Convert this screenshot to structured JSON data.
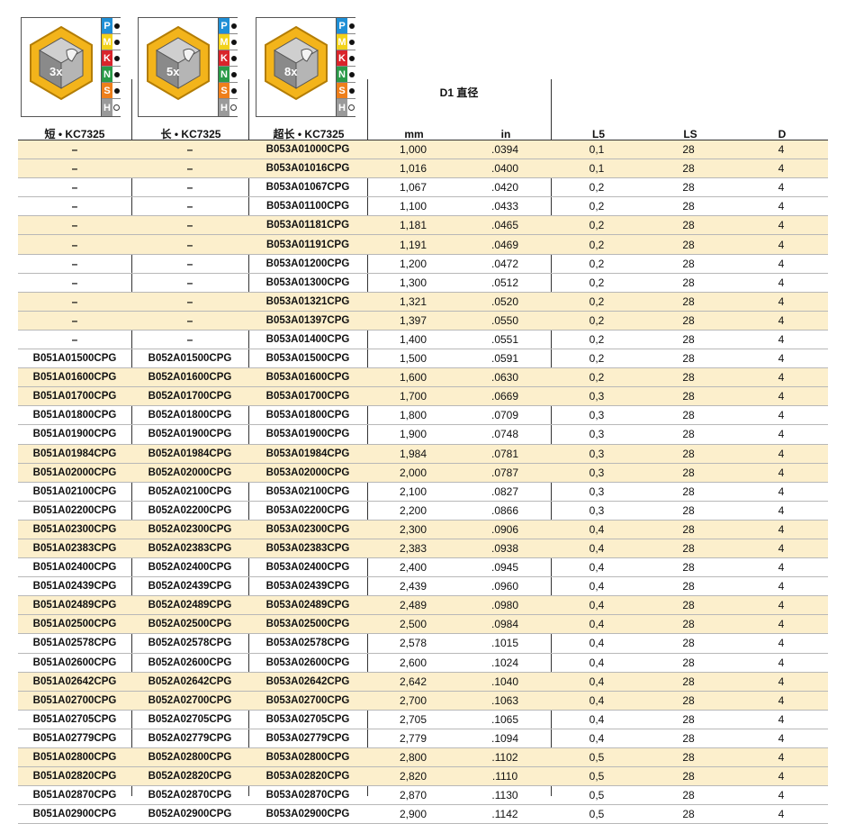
{
  "header": {
    "icons": [
      {
        "multiplier": "3x",
        "name": "3x-length-drill-icon"
      },
      {
        "multiplier": "5x",
        "name": "5x-length-drill-icon"
      },
      {
        "multiplier": "8x",
        "name": "8x-length-drill-icon"
      }
    ],
    "materials": [
      {
        "letter": "P",
        "color": "#1f8fd6",
        "suitable": "full"
      },
      {
        "letter": "M",
        "color": "#f2d21a",
        "suitable": "full"
      },
      {
        "letter": "K",
        "color": "#d9242b",
        "suitable": "full"
      },
      {
        "letter": "N",
        "color": "#2a9a48",
        "suitable": "full"
      },
      {
        "letter": "S",
        "color": "#ee7f1b",
        "suitable": "full"
      },
      {
        "letter": "H",
        "color": "#9a9a9a",
        "suitable": "empty"
      }
    ],
    "group_label": "D1 直径",
    "columns": {
      "short": "短 • KC7325",
      "long": "长 • KC7325",
      "extra_long": "超长 • KC7325",
      "mm": "mm",
      "in": "in",
      "l5": "L5",
      "ls": "LS",
      "d": "D"
    }
  },
  "rows": [
    [
      "–",
      "–",
      "B053A01000CPG",
      "1,000",
      ".0394",
      "0,1",
      "28",
      "4"
    ],
    [
      "–",
      "–",
      "B053A01016CPG",
      "1,016",
      ".0400",
      "0,1",
      "28",
      "4"
    ],
    [
      "–",
      "–",
      "B053A01067CPG",
      "1,067",
      ".0420",
      "0,2",
      "28",
      "4"
    ],
    [
      "–",
      "–",
      "B053A01100CPG",
      "1,100",
      ".0433",
      "0,2",
      "28",
      "4"
    ],
    [
      "–",
      "–",
      "B053A01181CPG",
      "1,181",
      ".0465",
      "0,2",
      "28",
      "4"
    ],
    [
      "–",
      "–",
      "B053A01191CPG",
      "1,191",
      ".0469",
      "0,2",
      "28",
      "4"
    ],
    [
      "–",
      "–",
      "B053A01200CPG",
      "1,200",
      ".0472",
      "0,2",
      "28",
      "4"
    ],
    [
      "–",
      "–",
      "B053A01300CPG",
      "1,300",
      ".0512",
      "0,2",
      "28",
      "4"
    ],
    [
      "–",
      "–",
      "B053A01321CPG",
      "1,321",
      ".0520",
      "0,2",
      "28",
      "4"
    ],
    [
      "–",
      "–",
      "B053A01397CPG",
      "1,397",
      ".0550",
      "0,2",
      "28",
      "4"
    ],
    [
      "–",
      "–",
      "B053A01400CPG",
      "1,400",
      ".0551",
      "0,2",
      "28",
      "4"
    ],
    [
      "B051A01500CPG",
      "B052A01500CPG",
      "B053A01500CPG",
      "1,500",
      ".0591",
      "0,2",
      "28",
      "4"
    ],
    [
      "B051A01600CPG",
      "B052A01600CPG",
      "B053A01600CPG",
      "1,600",
      ".0630",
      "0,2",
      "28",
      "4"
    ],
    [
      "B051A01700CPG",
      "B052A01700CPG",
      "B053A01700CPG",
      "1,700",
      ".0669",
      "0,3",
      "28",
      "4"
    ],
    [
      "B051A01800CPG",
      "B052A01800CPG",
      "B053A01800CPG",
      "1,800",
      ".0709",
      "0,3",
      "28",
      "4"
    ],
    [
      "B051A01900CPG",
      "B052A01900CPG",
      "B053A01900CPG",
      "1,900",
      ".0748",
      "0,3",
      "28",
      "4"
    ],
    [
      "B051A01984CPG",
      "B052A01984CPG",
      "B053A01984CPG",
      "1,984",
      ".0781",
      "0,3",
      "28",
      "4"
    ],
    [
      "B051A02000CPG",
      "B052A02000CPG",
      "B053A02000CPG",
      "2,000",
      ".0787",
      "0,3",
      "28",
      "4"
    ],
    [
      "B051A02100CPG",
      "B052A02100CPG",
      "B053A02100CPG",
      "2,100",
      ".0827",
      "0,3",
      "28",
      "4"
    ],
    [
      "B051A02200CPG",
      "B052A02200CPG",
      "B053A02200CPG",
      "2,200",
      ".0866",
      "0,3",
      "28",
      "4"
    ],
    [
      "B051A02300CPG",
      "B052A02300CPG",
      "B053A02300CPG",
      "2,300",
      ".0906",
      "0,4",
      "28",
      "4"
    ],
    [
      "B051A02383CPG",
      "B052A02383CPG",
      "B053A02383CPG",
      "2,383",
      ".0938",
      "0,4",
      "28",
      "4"
    ],
    [
      "B051A02400CPG",
      "B052A02400CPG",
      "B053A02400CPG",
      "2,400",
      ".0945",
      "0,4",
      "28",
      "4"
    ],
    [
      "B051A02439CPG",
      "B052A02439CPG",
      "B053A02439CPG",
      "2,439",
      ".0960",
      "0,4",
      "28",
      "4"
    ],
    [
      "B051A02489CPG",
      "B052A02489CPG",
      "B053A02489CPG",
      "2,489",
      ".0980",
      "0,4",
      "28",
      "4"
    ],
    [
      "B051A02500CPG",
      "B052A02500CPG",
      "B053A02500CPG",
      "2,500",
      ".0984",
      "0,4",
      "28",
      "4"
    ],
    [
      "B051A02578CPG",
      "B052A02578CPG",
      "B053A02578CPG",
      "2,578",
      ".1015",
      "0,4",
      "28",
      "4"
    ],
    [
      "B051A02600CPG",
      "B052A02600CPG",
      "B053A02600CPG",
      "2,600",
      ".1024",
      "0,4",
      "28",
      "4"
    ],
    [
      "B051A02642CPG",
      "B052A02642CPG",
      "B053A02642CPG",
      "2,642",
      ".1040",
      "0,4",
      "28",
      "4"
    ],
    [
      "B051A02700CPG",
      "B052A02700CPG",
      "B053A02700CPG",
      "2,700",
      ".1063",
      "0,4",
      "28",
      "4"
    ],
    [
      "B051A02705CPG",
      "B052A02705CPG",
      "B053A02705CPG",
      "2,705",
      ".1065",
      "0,4",
      "28",
      "4"
    ],
    [
      "B051A02779CPG",
      "B052A02779CPG",
      "B053A02779CPG",
      "2,779",
      ".1094",
      "0,4",
      "28",
      "4"
    ],
    [
      "B051A02800CPG",
      "B052A02800CPG",
      "B053A02800CPG",
      "2,800",
      ".1102",
      "0,5",
      "28",
      "4"
    ],
    [
      "B051A02820CPG",
      "B052A02820CPG",
      "B053A02820CPG",
      "2,820",
      ".1110",
      "0,5",
      "28",
      "4"
    ],
    [
      "B051A02870CPG",
      "B052A02870CPG",
      "B053A02870CPG",
      "2,870",
      ".1130",
      "0,5",
      "28",
      "4"
    ],
    [
      "B051A02900CPG",
      "B052A02900CPG",
      "B053A02900CPG",
      "2,900",
      ".1142",
      "0,5",
      "28",
      "4"
    ]
  ],
  "colors": {
    "alt_row": "#fcefcc",
    "icon_gold": "#f3b41b",
    "icon_gray": "#8a8a8a"
  }
}
